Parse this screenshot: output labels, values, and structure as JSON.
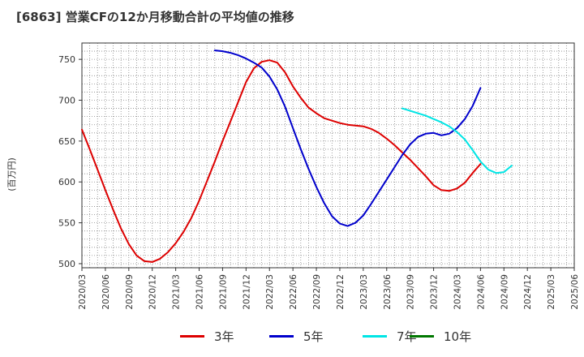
{
  "chart_data": {
    "type": "line",
    "title": "[6863]  営業CFの12か月移動合計の平均値の推移",
    "ylabel": "(百万円)",
    "xlabel": "",
    "ylim": [
      495,
      770
    ],
    "yticks": [
      500,
      550,
      600,
      650,
      700,
      750
    ],
    "x_ticks": [
      "2020/03",
      "2020/06",
      "2020/09",
      "2020/12",
      "2021/03",
      "2021/06",
      "2021/09",
      "2021/12",
      "2022/03",
      "2022/06",
      "2022/09",
      "2022/12",
      "2023/03",
      "2023/06",
      "2023/09",
      "2023/12",
      "2024/03",
      "2024/06",
      "2024/09",
      "2024/12",
      "2025/03",
      "2025/06"
    ],
    "grid": true,
    "legend_position": "bottom",
    "series": [
      {
        "name": "3年",
        "color": "#dd0000",
        "start": "2020/03",
        "values": [
          664,
          640,
          615,
          590,
          566,
          543,
          524,
          510,
          503,
          502,
          506,
          514,
          525,
          539,
          556,
          577,
          601,
          625,
          650,
          674,
          698,
          722,
          739,
          747,
          749,
          746,
          734,
          717,
          703,
          691,
          684,
          678,
          675,
          672,
          670,
          669,
          668,
          665,
          660,
          653,
          645,
          636,
          627,
          617,
          607,
          596,
          590,
          589,
          592,
          599,
          611,
          622
        ]
      },
      {
        "name": "5年",
        "color": "#0000cc",
        "start": "2021/08",
        "values": [
          761,
          760,
          758,
          755,
          751,
          746,
          740,
          729,
          713,
          692,
          666,
          640,
          616,
          594,
          574,
          558,
          549,
          546,
          550,
          559,
          573,
          588,
          603,
          618,
          633,
          646,
          655,
          659,
          660,
          657,
          659,
          666,
          677,
          693,
          715
        ]
      },
      {
        "name": "7年",
        "color": "#00e5e5",
        "start": "2023/08",
        "values": [
          690,
          687,
          684,
          681,
          677,
          673,
          668,
          661,
          652,
          639,
          625,
          615,
          611,
          612,
          620
        ]
      },
      {
        "name": "10年",
        "color": "#007700",
        "start": "2025/03",
        "values": []
      }
    ]
  }
}
